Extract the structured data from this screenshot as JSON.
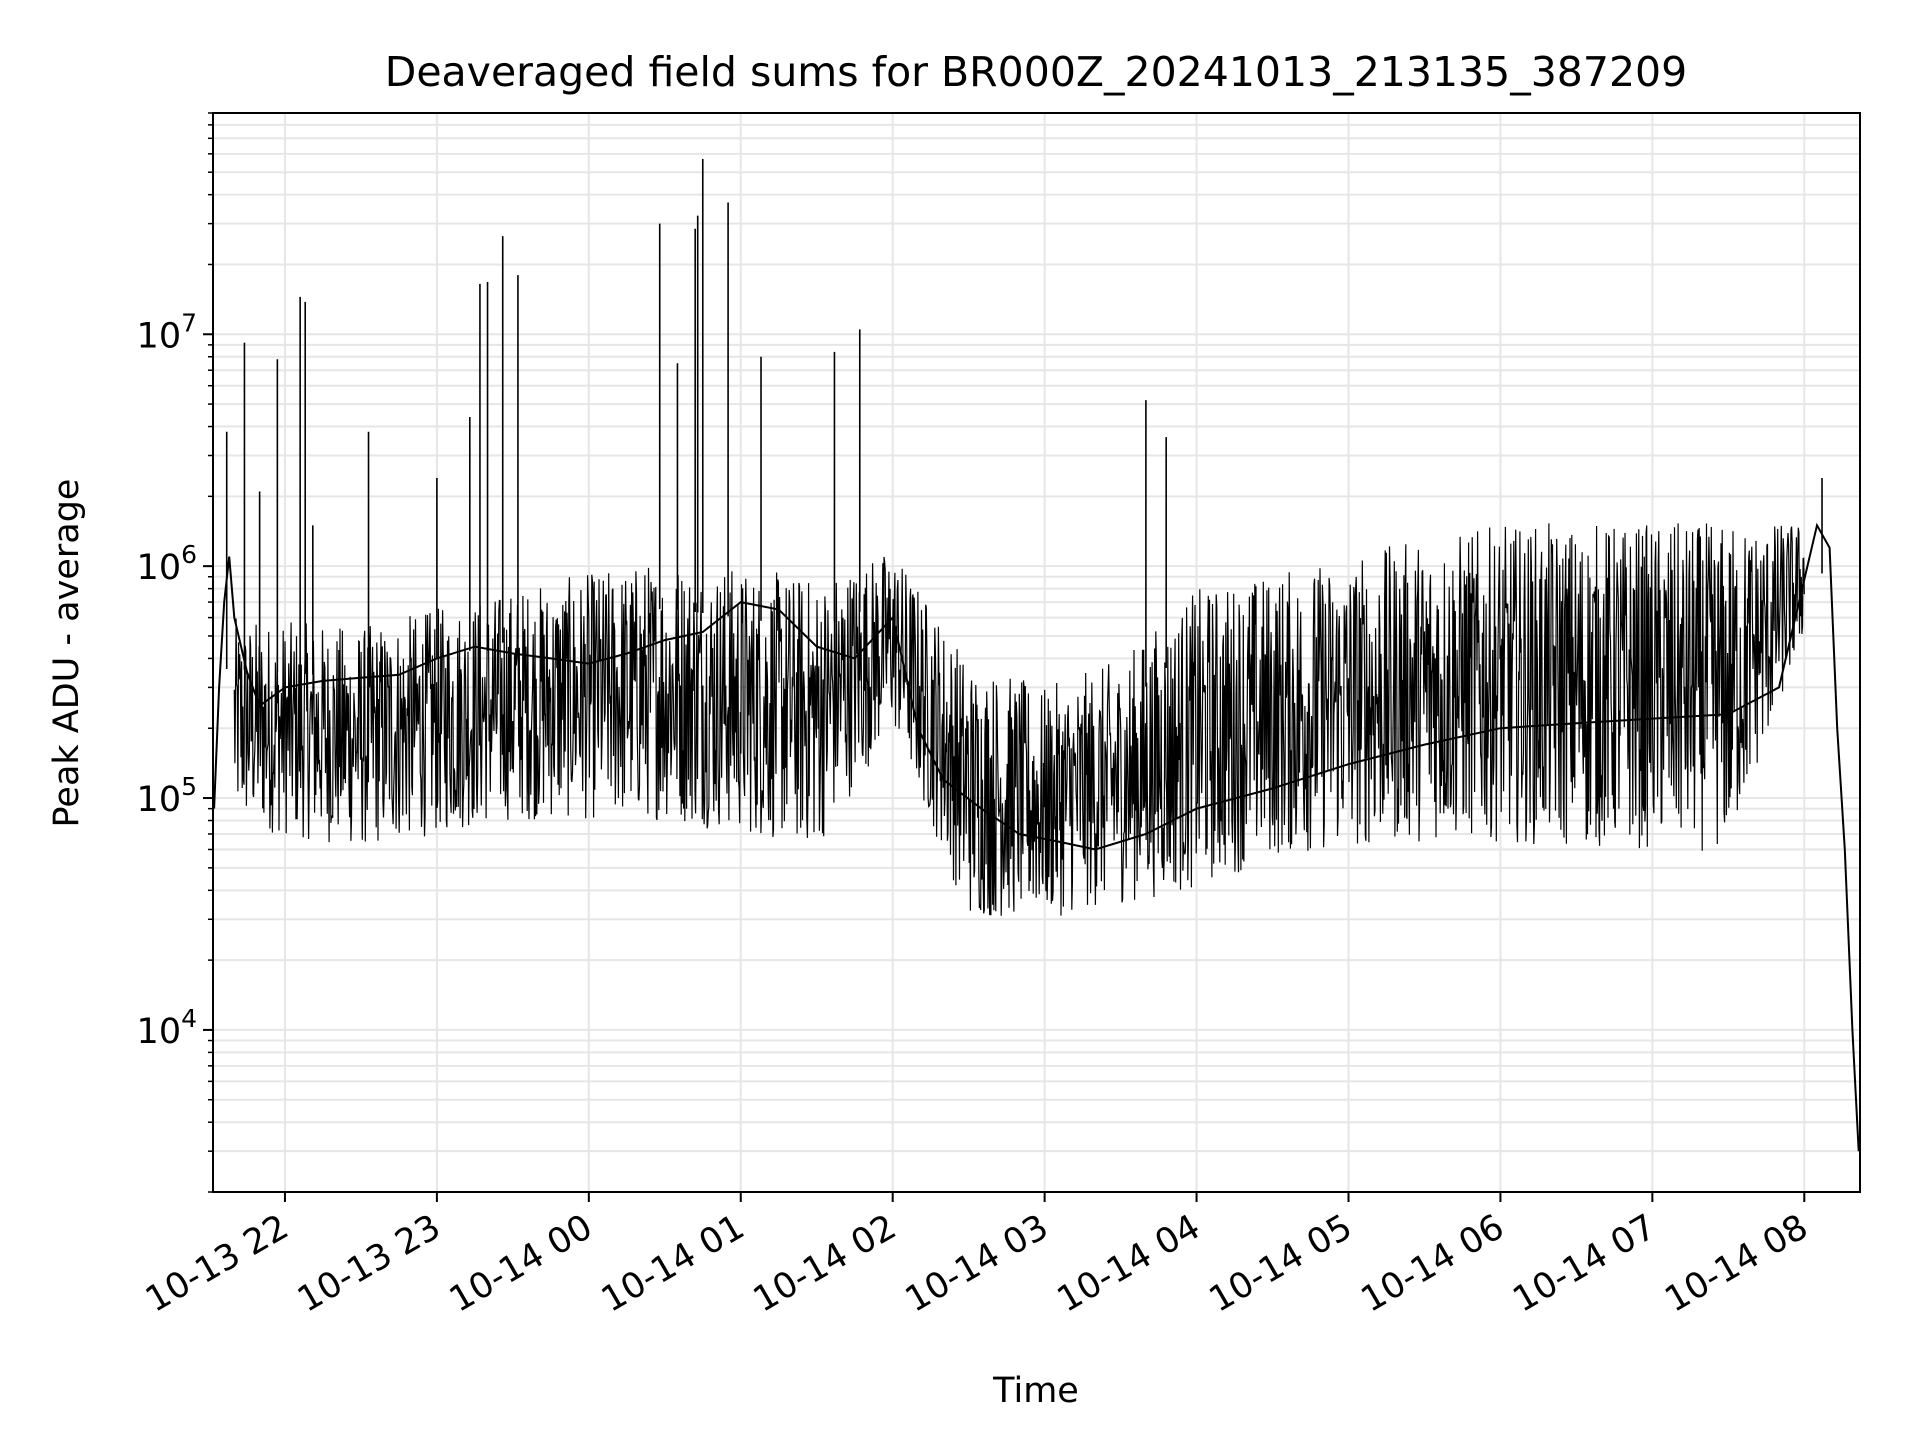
{
  "chart_data": {
    "type": "line",
    "title": "Deaveraged field sums for BR000Z_20241013_213135_387209",
    "xlabel": "Time",
    "ylabel": "Peak ADU - average",
    "x_axis_type": "time",
    "xlim": [
      "2024-10-13T21:31:35",
      "2024-10-14T08:22:00"
    ],
    "x_ticks": [
      {
        "value": "2024-10-13T22:00:00",
        "label": "10-13 22"
      },
      {
        "value": "2024-10-13T23:00:00",
        "label": "10-13 23"
      },
      {
        "value": "2024-10-14T00:00:00",
        "label": "10-14 00"
      },
      {
        "value": "2024-10-14T01:00:00",
        "label": "10-14 01"
      },
      {
        "value": "2024-10-14T02:00:00",
        "label": "10-14 02"
      },
      {
        "value": "2024-10-14T03:00:00",
        "label": "10-14 03"
      },
      {
        "value": "2024-10-14T04:00:00",
        "label": "10-14 04"
      },
      {
        "value": "2024-10-14T05:00:00",
        "label": "10-14 05"
      },
      {
        "value": "2024-10-14T06:00:00",
        "label": "10-14 06"
      },
      {
        "value": "2024-10-14T07:00:00",
        "label": "10-14 07"
      },
      {
        "value": "2024-10-14T08:00:00",
        "label": "10-14 08"
      }
    ],
    "y_scale": "log",
    "ylim": [
      2000,
      90000000
    ],
    "y_ticks": [
      {
        "value": 10000,
        "base": "10",
        "exp": "4"
      },
      {
        "value": 100000,
        "base": "10",
        "exp": "5"
      },
      {
        "value": 1000000,
        "base": "10",
        "exp": "6"
      },
      {
        "value": 10000000,
        "base": "10",
        "exp": "7"
      }
    ],
    "grid": true,
    "grid_minor": true,
    "line_color": "#000000",
    "grid_color": "#e6e6e6",
    "series": [
      {
        "points": [
          [
            "2024-10-13T21:32:00",
            90000
          ],
          [
            "2024-10-13T21:34:00",
            300000
          ],
          [
            "2024-10-13T21:36:00",
            700000
          ],
          [
            "2024-10-13T21:38:00",
            1100000
          ],
          [
            "2024-10-13T21:40:00",
            600000
          ],
          [
            "2024-10-13T21:45:00",
            350000
          ],
          [
            "2024-10-13T21:50:00",
            250000
          ],
          [
            "2024-10-13T22:00:00",
            300000
          ],
          [
            "2024-10-13T22:15:00",
            320000
          ],
          [
            "2024-10-13T22:30:00",
            330000
          ],
          [
            "2024-10-13T22:45:00",
            340000
          ],
          [
            "2024-10-13T23:00:00",
            400000
          ],
          [
            "2024-10-13T23:15:00",
            450000
          ],
          [
            "2024-10-13T23:30:00",
            420000
          ],
          [
            "2024-10-13T23:45:00",
            400000
          ],
          [
            "2024-10-14T00:00:00",
            380000
          ],
          [
            "2024-10-14T00:15:00",
            420000
          ],
          [
            "2024-10-14T00:30:00",
            480000
          ],
          [
            "2024-10-14T00:45:00",
            520000
          ],
          [
            "2024-10-14T01:00:00",
            700000
          ],
          [
            "2024-10-14T01:15:00",
            650000
          ],
          [
            "2024-10-14T01:30:00",
            450000
          ],
          [
            "2024-10-14T01:45:00",
            400000
          ],
          [
            "2024-10-14T02:00:00",
            600000
          ],
          [
            "2024-10-14T02:10:00",
            200000
          ],
          [
            "2024-10-14T02:20:00",
            120000
          ],
          [
            "2024-10-14T02:35:00",
            90000
          ],
          [
            "2024-10-14T02:50:00",
            70000
          ],
          [
            "2024-10-14T03:05:00",
            65000
          ],
          [
            "2024-10-14T03:20:00",
            60000
          ],
          [
            "2024-10-14T03:40:00",
            70000
          ],
          [
            "2024-10-14T04:00:00",
            90000
          ],
          [
            "2024-10-14T04:30:00",
            110000
          ],
          [
            "2024-10-14T05:00:00",
            140000
          ],
          [
            "2024-10-14T05:30:00",
            170000
          ],
          [
            "2024-10-14T06:00:00",
            200000
          ],
          [
            "2024-10-14T06:30:00",
            210000
          ],
          [
            "2024-10-14T07:00:00",
            220000
          ],
          [
            "2024-10-14T07:30:00",
            230000
          ],
          [
            "2024-10-14T07:50:00",
            300000
          ],
          [
            "2024-10-14T08:05:00",
            1500000
          ],
          [
            "2024-10-14T08:10:00",
            1200000
          ],
          [
            "2024-10-14T08:13:00",
            200000
          ],
          [
            "2024-10-14T08:16:00",
            60000
          ],
          [
            "2024-10-14T08:19:00",
            10000
          ],
          [
            "2024-10-14T08:21:30",
            3000
          ]
        ]
      }
    ],
    "spikes": [
      [
        "2024-10-13T21:37:00",
        3800000
      ],
      [
        "2024-10-13T21:44:00",
        9200000
      ],
      [
        "2024-10-13T21:50:00",
        2100000
      ],
      [
        "2024-10-13T21:57:00",
        7800000
      ],
      [
        "2024-10-13T22:06:00",
        14500000
      ],
      [
        "2024-10-13T22:08:00",
        13800000
      ],
      [
        "2024-10-13T22:11:00",
        1500000
      ],
      [
        "2024-10-13T22:33:00",
        3800000
      ],
      [
        "2024-10-13T23:00:00",
        2400000
      ],
      [
        "2024-10-13T23:13:00",
        4400000
      ],
      [
        "2024-10-13T23:17:00",
        16500000
      ],
      [
        "2024-10-13T23:20:00",
        16800000
      ],
      [
        "2024-10-13T23:26:00",
        26500000
      ],
      [
        "2024-10-13T23:32:00",
        18000000
      ],
      [
        "2024-10-14T00:28:00",
        30000000
      ],
      [
        "2024-10-14T00:35:00",
        7500000
      ],
      [
        "2024-10-14T00:42:00",
        28500000
      ],
      [
        "2024-10-14T00:43:00",
        32500000
      ],
      [
        "2024-10-14T00:45:00",
        57000000
      ],
      [
        "2024-10-14T00:55:00",
        37000000
      ],
      [
        "2024-10-14T01:08:00",
        8000000
      ],
      [
        "2024-10-14T01:37:00",
        8400000
      ],
      [
        "2024-10-14T01:47:00",
        10500000
      ],
      [
        "2024-10-14T03:40:00",
        5200000
      ],
      [
        "2024-10-14T03:48:00",
        3600000
      ],
      [
        "2024-10-14T08:07:00",
        2400000
      ]
    ],
    "band": {
      "comment_free": true,
      "upper": [
        [
          "2024-10-13T21:40:00",
          600000
        ],
        [
          "2024-10-13T22:30:00",
          550000
        ],
        [
          "2024-10-13T23:30:00",
          800000
        ],
        [
          "2024-10-14T00:30:00",
          1100000
        ],
        [
          "2024-10-14T01:30:00",
          900000
        ],
        [
          "2024-10-14T02:00:00",
          1200000
        ],
        [
          "2024-10-14T02:30:00",
          400000
        ],
        [
          "2024-10-14T03:00:00",
          300000
        ],
        [
          "2024-10-14T03:30:00",
          400000
        ],
        [
          "2024-10-14T04:00:00",
          800000
        ],
        [
          "2024-10-14T04:30:00",
          950000
        ],
        [
          "2024-10-14T05:00:00",
          1100000
        ],
        [
          "2024-10-14T05:30:00",
          1350000
        ],
        [
          "2024-10-14T06:00:00",
          1500000
        ],
        [
          "2024-10-14T06:30:00",
          1550000
        ],
        [
          "2024-10-14T07:00:00",
          1550000
        ],
        [
          "2024-10-14T07:30:00",
          1550000
        ],
        [
          "2024-10-14T08:00:00",
          1550000
        ]
      ],
      "lower": [
        [
          "2024-10-13T21:40:00",
          75000
        ],
        [
          "2024-10-13T22:30:00",
          60000
        ],
        [
          "2024-10-13T23:30:00",
          80000
        ],
        [
          "2024-10-14T00:30:00",
          80000
        ],
        [
          "2024-10-14T01:30:00",
          60000
        ],
        [
          "2024-10-14T02:00:00",
          200000
        ],
        [
          "2024-10-14T02:30:00",
          30000
        ],
        [
          "2024-10-14T03:00:00",
          30000
        ],
        [
          "2024-10-14T03:30:00",
          35000
        ],
        [
          "2024-10-14T04:00:00",
          40000
        ],
        [
          "2024-10-14T04:30:00",
          55000
        ],
        [
          "2024-10-14T05:00:00",
          60000
        ],
        [
          "2024-10-14T05:30:00",
          65000
        ],
        [
          "2024-10-14T06:00:00",
          65000
        ],
        [
          "2024-10-14T06:30:00",
          60000
        ],
        [
          "2024-10-14T07:00:00",
          60000
        ],
        [
          "2024-10-14T07:30:00",
          58000
        ],
        [
          "2024-10-14T08:00:00",
          500000
        ]
      ]
    }
  }
}
